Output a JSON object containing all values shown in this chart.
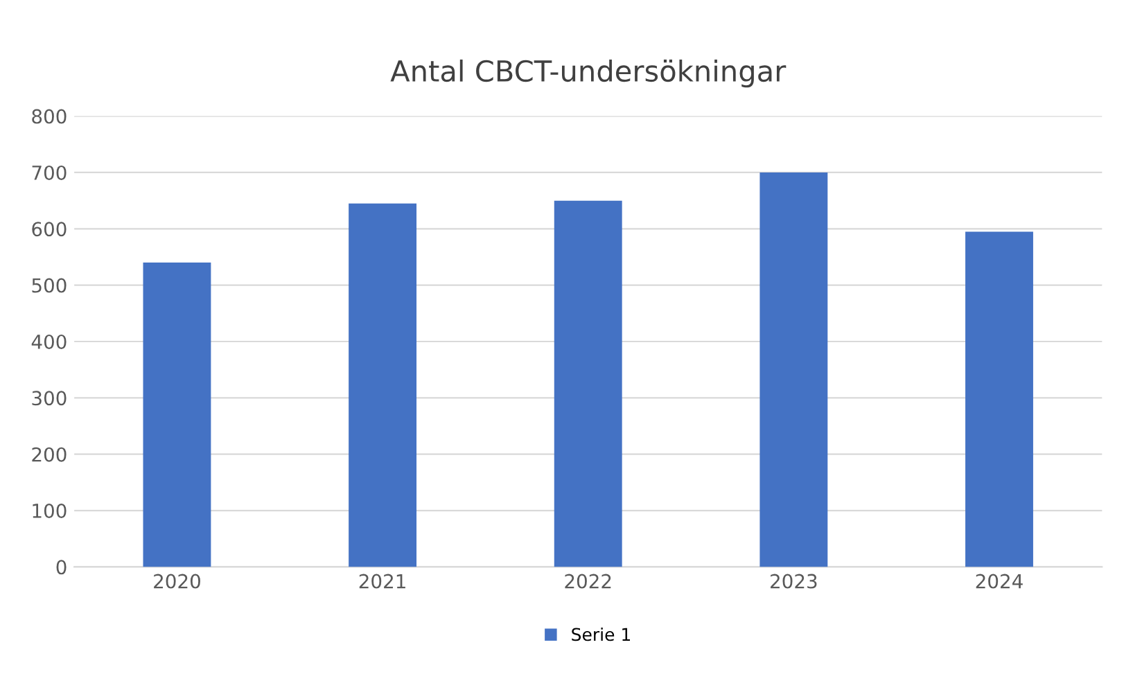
{
  "chart_data": {
    "type": "bar",
    "title": "Antal CBCT-undersökningar",
    "categories": [
      "2020",
      "2021",
      "2022",
      "2023",
      "2024"
    ],
    "series": [
      {
        "name": "Serie 1",
        "color": "#4472c4",
        "values": [
          540,
          645,
          650,
          700,
          595
        ]
      }
    ],
    "ylim": [
      0,
      800
    ],
    "yticks": [
      0,
      100,
      200,
      300,
      400,
      500,
      600,
      700,
      800
    ],
    "grid": "y",
    "legend": "bottom"
  }
}
